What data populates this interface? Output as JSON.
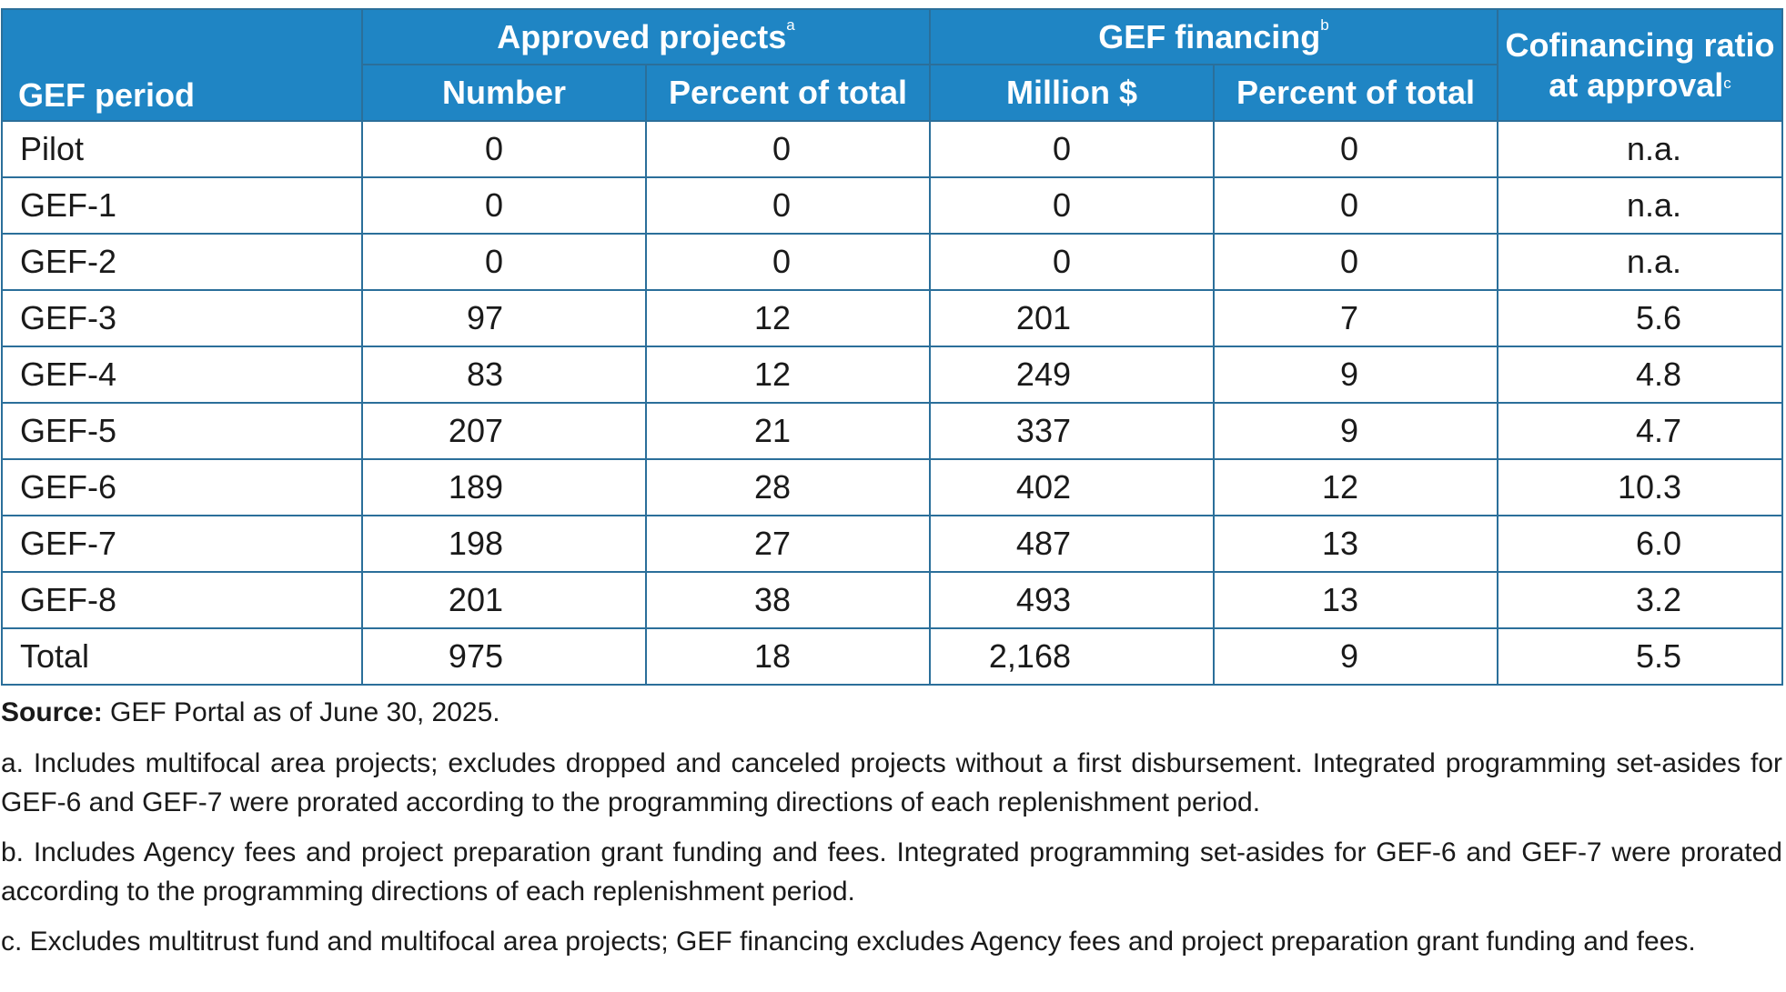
{
  "header": {
    "period_label": "GEF period",
    "approved_group": "Approved projects",
    "approved_note": "a",
    "financing_group": "GEF financing",
    "financing_note": "b",
    "ratio_line1": "Cofinancing ratio",
    "ratio_line2": "at approval",
    "ratio_note": "c",
    "number_label": "Number",
    "pct_total_label_1": "Percent of total",
    "million_label": "Million $",
    "pct_total_label_2": "Percent of total"
  },
  "rows": [
    {
      "period": "Pilot",
      "number": "0",
      "pct_projects": "0",
      "million": "0",
      "pct_financing": "0",
      "ratio": "n.a."
    },
    {
      "period": "GEF-1",
      "number": "0",
      "pct_projects": "0",
      "million": "0",
      "pct_financing": "0",
      "ratio": "n.a."
    },
    {
      "period": "GEF-2",
      "number": "0",
      "pct_projects": "0",
      "million": "0",
      "pct_financing": "0",
      "ratio": "n.a."
    },
    {
      "period": "GEF-3",
      "number": "97",
      "pct_projects": "12",
      "million": "201",
      "pct_financing": "7",
      "ratio": "5.6"
    },
    {
      "period": "GEF-4",
      "number": "83",
      "pct_projects": "12",
      "million": "249",
      "pct_financing": "9",
      "ratio": "4.8"
    },
    {
      "period": "GEF-5",
      "number": "207",
      "pct_projects": "21",
      "million": "337",
      "pct_financing": "9",
      "ratio": "4.7"
    },
    {
      "period": "GEF-6",
      "number": "189",
      "pct_projects": "28",
      "million": "402",
      "pct_financing": "12",
      "ratio": "10.3"
    },
    {
      "period": "GEF-7",
      "number": "198",
      "pct_projects": "27",
      "million": "487",
      "pct_financing": "13",
      "ratio": "6.0"
    },
    {
      "period": "GEF-8",
      "number": "201",
      "pct_projects": "38",
      "million": "493",
      "pct_financing": "13",
      "ratio": "3.2"
    },
    {
      "period": "Total",
      "number": "975",
      "pct_projects": "18",
      "million": "2,168",
      "pct_financing": "9",
      "ratio": "5.5"
    }
  ],
  "notes": {
    "source_label": "Source:",
    "source_text": " GEF Portal as of June 30, 2025.",
    "note_a": "a. Includes multifocal area projects; excludes dropped and canceled projects without a first disbursement. Integrated programming set-asides for GEF-6 and GEF-7 were prorated according to the programming directions of each replenishment period.",
    "note_b": "b. Includes Agency fees and project preparation grant funding and fees. Integrated programming set-asides for GEF-6 and GEF-7 were prorated according to the programming directions of each replenishment period.",
    "note_c": "c. Excludes multitrust fund and multifocal area projects; GEF financing excludes Agency fees and project preparation grant funding and fees."
  },
  "colors": {
    "header_bg": "#1f85c4",
    "grid_line": "#2b6f9a",
    "header_text": "#ffffff"
  }
}
